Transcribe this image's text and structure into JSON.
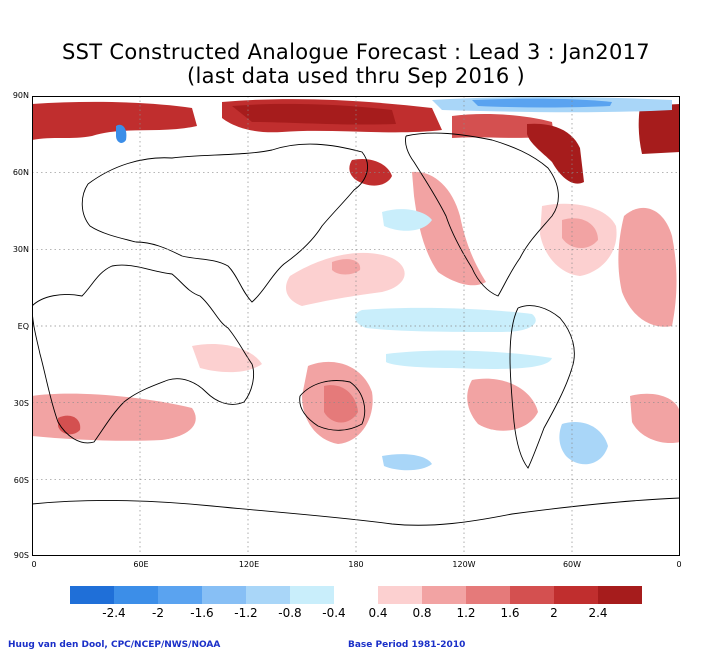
{
  "title_line1": "SST Constructed Analogue Forecast : Lead 3 : Jan2017",
  "title_line2": "(last data used thru Sep 2016 )",
  "y_axis_labels": [
    "90N",
    "60N",
    "30N",
    "EQ",
    "30S",
    "60S",
    "90S"
  ],
  "x_axis_labels": [
    "0",
    "60E",
    "120E",
    "180",
    "120W",
    "60W",
    "0"
  ],
  "colorbar": {
    "colors": [
      "#1f6fd8",
      "#3c8ee8",
      "#5aa3f0",
      "#87bff5",
      "#a9d6f8",
      "#c9eefb",
      "#ffffff",
      "#fcd0d0",
      "#f2a3a3",
      "#e57a7a",
      "#d45050",
      "#c02e2e",
      "#a61c1c"
    ],
    "labels": [
      "-2.4",
      "-2",
      "-1.6",
      "-1.2",
      "-0.8",
      "-0.4",
      "0.4",
      "0.8",
      "1.2",
      "1.6",
      "2",
      "2.4"
    ]
  },
  "credit_left": "Huug van den Dool, CPC/NCEP/NWS/NOAA",
  "credit_right": "Base Period 1981-2010"
}
